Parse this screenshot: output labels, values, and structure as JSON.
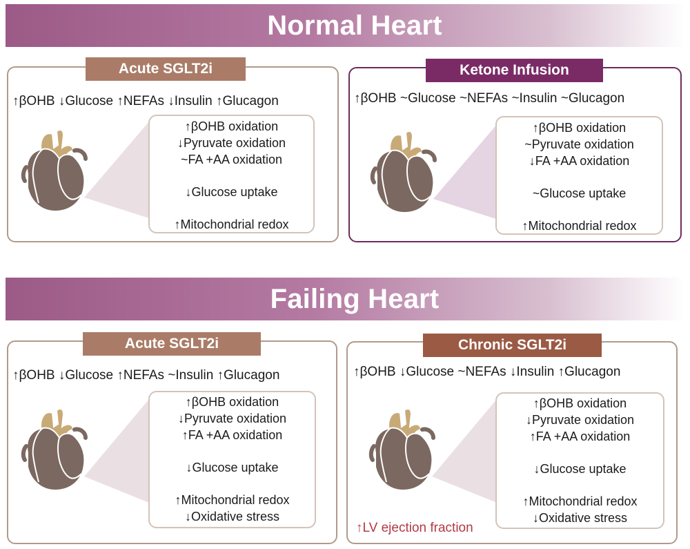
{
  "colors": {
    "banner_gradient": [
      "#9c5a87",
      "#d8bfd0"
    ],
    "panel_border_tan": "#b09a8c",
    "panel_border_purple": "#6e2a5b",
    "tag_tan": "#aa7c68",
    "tag_plum": "#7a2b66",
    "tag_brown": "#9a5a44",
    "heart_dark": "#7b6860",
    "heart_gold": "#c8aa77",
    "lvef_text": "#b23a44"
  },
  "normal": {
    "title": "Normal Heart",
    "acute": {
      "tag": "Acute SGLT2i",
      "markers": "↑βOHB ↓Glucose ↑NEFAs ↓Insulin ↑Glucagon",
      "effects": [
        "↑βOHB oxidation",
        "↓Pyruvate oxidation",
        "~FA +AA oxidation",
        "↓Glucose uptake",
        "↑Mitochondrial redox"
      ]
    },
    "ketone": {
      "tag": "Ketone Infusion",
      "markers": "↑βOHB ~Glucose ~NEFAs ~Insulin  ~Glucagon",
      "effects": [
        "↑βOHB oxidation",
        "~Pyruvate oxidation",
        "↓FA +AA oxidation",
        "~Glucose uptake",
        "↑Mitochondrial redox"
      ]
    }
  },
  "failing": {
    "title": "Failing Heart",
    "acute": {
      "tag": "Acute SGLT2i",
      "markers": "↑βOHB ↓Glucose ↑NEFAs ~Insulin ↑Glucagon",
      "effects": [
        "↑βOHB oxidation",
        "↓Pyruvate oxidation",
        "↑FA +AA oxidation",
        "↓Glucose uptake",
        "↑Mitochondrial redox",
        "↓Oxidative stress"
      ]
    },
    "chronic": {
      "tag": "Chronic SGLT2i",
      "markers": "↑βOHB ↓Glucose ~NEFAs ↓Insulin ↑Glucagon",
      "effects": [
        "↑βOHB oxidation",
        "↓Pyruvate oxidation",
        "↑FA +AA oxidation",
        "↓Glucose uptake",
        "↑Mitochondrial redox",
        "↓Oxidative stress"
      ],
      "outcome": "↑LV ejection fraction"
    }
  }
}
